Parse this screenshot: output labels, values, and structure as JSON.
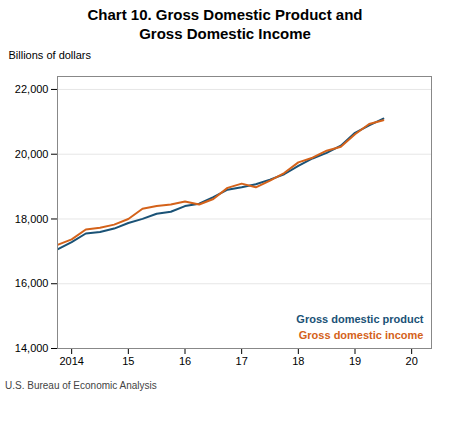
{
  "chart_data": {
    "type": "line",
    "title": "Chart 10. Gross Domestic Product and\nGross Domestic Income",
    "caption": "U.S. Bureau of Economic Analysis",
    "ylabel": "Billions of dollars",
    "x": [
      2013.75,
      2014,
      2014.25,
      2014.5,
      2014.75,
      2015,
      2015.25,
      2015.5,
      2015.75,
      2016,
      2016.25,
      2016.5,
      2016.75,
      2017,
      2017.25,
      2017.5,
      2017.75,
      2018,
      2018.25,
      2018.5,
      2018.75,
      2019,
      2019.25,
      2019.5
    ],
    "series": [
      {
        "name": "Gross domestic product",
        "color": "#1a5276",
        "values": [
          17063,
          17288,
          17551,
          17596,
          17703,
          17877,
          18004,
          18161,
          18222,
          18399,
          18470,
          18675,
          18905,
          18980,
          19073,
          19215,
          19381,
          19640,
          19869,
          20041,
          20263,
          20660,
          20891,
          21098
        ]
      },
      {
        "name": "Gross domestic income",
        "color": "#d4621a",
        "values": [
          17201,
          17370,
          17676,
          17729,
          17826,
          18000,
          18315,
          18402,
          18446,
          18540,
          18447,
          18617,
          18960,
          19091,
          18977,
          19187,
          19419,
          19749,
          19892,
          20108,
          20230,
          20615,
          20934,
          21050
        ]
      }
    ],
    "xlim": [
      2013.75,
      2020.35
    ],
    "xticks": [
      2014,
      {
        "value": 2015,
        "label": "15"
      },
      {
        "value": 2016,
        "label": "16"
      },
      {
        "value": 2017,
        "label": "17"
      },
      {
        "value": 2018,
        "label": "18"
      },
      {
        "value": 2019,
        "label": "19"
      },
      {
        "value": 2020,
        "label": "20"
      }
    ],
    "ylim": [
      14000,
      22400
    ],
    "yticks": [
      {
        "value": 14000,
        "label": "14,000"
      },
      {
        "value": 16000,
        "label": "16,000"
      },
      {
        "value": 18000,
        "label": "18,000"
      },
      {
        "value": 20000,
        "label": "20,000"
      },
      {
        "value": 22000,
        "label": "22,000"
      }
    ],
    "grid": true,
    "legend": "lower right"
  }
}
